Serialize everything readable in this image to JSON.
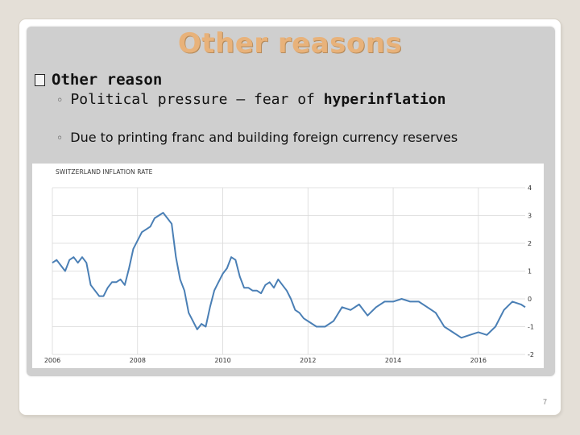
{
  "slide": {
    "title": "Other reasons",
    "bullet": "Other reason",
    "bullet_marker": "checkbox-icon",
    "sub_items": [
      {
        "prefix": "Political pressure – fear of ",
        "emphasis": "hyperinflation"
      },
      {
        "text": "Due to printing franc and building foreign currency reserves"
      }
    ],
    "slide_number": "7"
  },
  "chart_data": {
    "type": "line",
    "title": "SWITZERLAND INFLATION RATE",
    "xlabel": "",
    "ylabel": "",
    "x_ticks": [
      "2006",
      "2008",
      "2010",
      "2012",
      "2014",
      "2016"
    ],
    "y_ticks": [
      4,
      3,
      2,
      1,
      0,
      -1,
      -2
    ],
    "ylim": [
      -2,
      4
    ],
    "xlim": [
      2006.0,
      2017.1
    ],
    "grid": true,
    "colors": {
      "line": "#4a7fb5",
      "grid": "#d9d9d9"
    },
    "series": [
      {
        "name": "",
        "x": [
          2006.0,
          2006.1,
          2006.2,
          2006.3,
          2006.4,
          2006.5,
          2006.6,
          2006.7,
          2006.8,
          2006.9,
          2007.0,
          2007.1,
          2007.2,
          2007.3,
          2007.4,
          2007.5,
          2007.6,
          2007.7,
          2007.8,
          2007.9,
          2008.0,
          2008.1,
          2008.2,
          2008.3,
          2008.4,
          2008.5,
          2008.6,
          2008.7,
          2008.8,
          2008.9,
          2009.0,
          2009.1,
          2009.2,
          2009.3,
          2009.4,
          2009.5,
          2009.6,
          2009.7,
          2009.8,
          2009.9,
          2010.0,
          2010.1,
          2010.2,
          2010.3,
          2010.4,
          2010.5,
          2010.6,
          2010.7,
          2010.8,
          2010.9,
          2011.0,
          2011.1,
          2011.2,
          2011.3,
          2011.4,
          2011.5,
          2011.6,
          2011.7,
          2011.8,
          2011.9,
          2012.0,
          2012.2,
          2012.4,
          2012.6,
          2012.8,
          2013.0,
          2013.2,
          2013.4,
          2013.6,
          2013.8,
          2014.0,
          2014.2,
          2014.4,
          2014.6,
          2014.8,
          2015.0,
          2015.2,
          2015.4,
          2015.6,
          2015.8,
          2016.0,
          2016.2,
          2016.4,
          2016.6,
          2016.8,
          2017.0,
          2017.1
        ],
        "values": [
          1.3,
          1.4,
          1.2,
          1.0,
          1.4,
          1.5,
          1.3,
          1.5,
          1.3,
          0.5,
          0.3,
          0.1,
          0.1,
          0.4,
          0.6,
          0.6,
          0.7,
          0.5,
          1.1,
          1.8,
          2.1,
          2.4,
          2.5,
          2.6,
          2.9,
          3.0,
          3.1,
          2.9,
          2.7,
          1.5,
          0.7,
          0.3,
          -0.5,
          -0.8,
          -1.1,
          -0.9,
          -1.0,
          -0.3,
          0.3,
          0.6,
          0.9,
          1.1,
          1.5,
          1.4,
          0.8,
          0.4,
          0.4,
          0.3,
          0.3,
          0.2,
          0.5,
          0.6,
          0.4,
          0.7,
          0.5,
          0.3,
          0.0,
          -0.4,
          -0.5,
          -0.7,
          -0.8,
          -1.0,
          -1.0,
          -0.8,
          -0.3,
          -0.4,
          -0.2,
          -0.6,
          -0.3,
          -0.1,
          -0.1,
          0.0,
          -0.1,
          -0.1,
          -0.3,
          -0.5,
          -1.0,
          -1.2,
          -1.4,
          -1.3,
          -1.2,
          -1.3,
          -1.0,
          -0.4,
          -0.1,
          -0.2,
          -0.3
        ]
      }
    ]
  }
}
